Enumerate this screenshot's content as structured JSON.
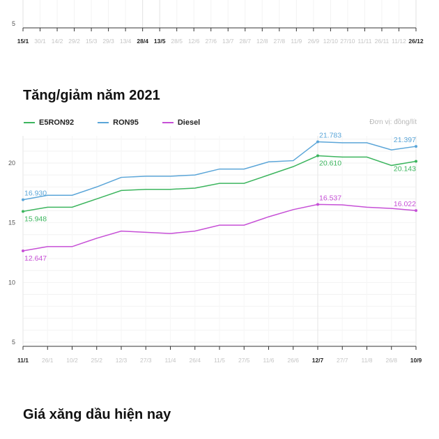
{
  "top_chart": {
    "y_tick": "5",
    "x_labels": [
      "15/1",
      "30/1",
      "14/2",
      "29/2",
      "15/3",
      "29/3",
      "13/4",
      "28/4",
      "13/5",
      "28/5",
      "12/6",
      "27/6",
      "13/7",
      "28/7",
      "12/8",
      "27/8",
      "11/9",
      "26/9",
      "12/10",
      "27/10",
      "11/11",
      "26/11",
      "11/12",
      "26/12"
    ],
    "x_bold": [
      0,
      7,
      8,
      23
    ]
  },
  "section_title": "Tăng/giảm năm 2021",
  "footer_title": "Giá xăng dầu hiện nay",
  "unit_label": "Đơn vị: đồng/lít",
  "colors": {
    "E5RON92": "#3cb55e",
    "RON95": "#5aa5d8",
    "Diesel": "#c64fd6"
  },
  "chart_data": {
    "type": "line",
    "x": [
      "11/1",
      "26/1",
      "10/2",
      "25/2",
      "12/3",
      "27/3",
      "11/4",
      "26/4",
      "11/5",
      "27/5",
      "11/6",
      "26/6",
      "12/7",
      "27/7",
      "11/8",
      "26/8",
      "10/9"
    ],
    "x_bold": [
      0,
      12,
      16
    ],
    "y_ticks": [
      5,
      10,
      15,
      20
    ],
    "ylim": [
      5,
      22
    ],
    "series": [
      {
        "name": "E5RON92",
        "color": "#3cb55e",
        "values": [
          15.948,
          16.3,
          16.3,
          17.0,
          17.7,
          17.8,
          17.8,
          17.9,
          18.3,
          18.3,
          19.0,
          19.7,
          20.61,
          20.5,
          20.5,
          19.8,
          20.143
        ]
      },
      {
        "name": "RON95",
        "color": "#5aa5d8",
        "values": [
          16.93,
          17.3,
          17.3,
          18.0,
          18.8,
          18.9,
          18.9,
          19.0,
          19.5,
          19.5,
          20.1,
          20.2,
          21.783,
          21.7,
          21.7,
          21.1,
          21.397
        ]
      },
      {
        "name": "Diesel",
        "color": "#c64fd6",
        "values": [
          12.647,
          13.0,
          13.0,
          13.7,
          14.3,
          14.2,
          14.1,
          14.3,
          14.8,
          14.8,
          15.5,
          16.1,
          16.537,
          16.5,
          16.3,
          16.2,
          16.022
        ]
      }
    ],
    "annotations": [
      {
        "series": "RON95",
        "index": 0,
        "text": "16.930",
        "pos": "above"
      },
      {
        "series": "E5RON92",
        "index": 0,
        "text": "15.948",
        "pos": "below"
      },
      {
        "series": "Diesel",
        "index": 0,
        "text": "12.647",
        "pos": "below"
      },
      {
        "series": "RON95",
        "index": 12,
        "text": "21.783",
        "pos": "above"
      },
      {
        "series": "E5RON92",
        "index": 12,
        "text": "20.610",
        "pos": "below"
      },
      {
        "series": "Diesel",
        "index": 12,
        "text": "16.537",
        "pos": "above"
      },
      {
        "series": "RON95",
        "index": 16,
        "text": "21.397",
        "pos": "above"
      },
      {
        "series": "E5RON92",
        "index": 16,
        "text": "20.143",
        "pos": "below"
      },
      {
        "series": "Diesel",
        "index": 16,
        "text": "16.022",
        "pos": "above"
      }
    ]
  }
}
